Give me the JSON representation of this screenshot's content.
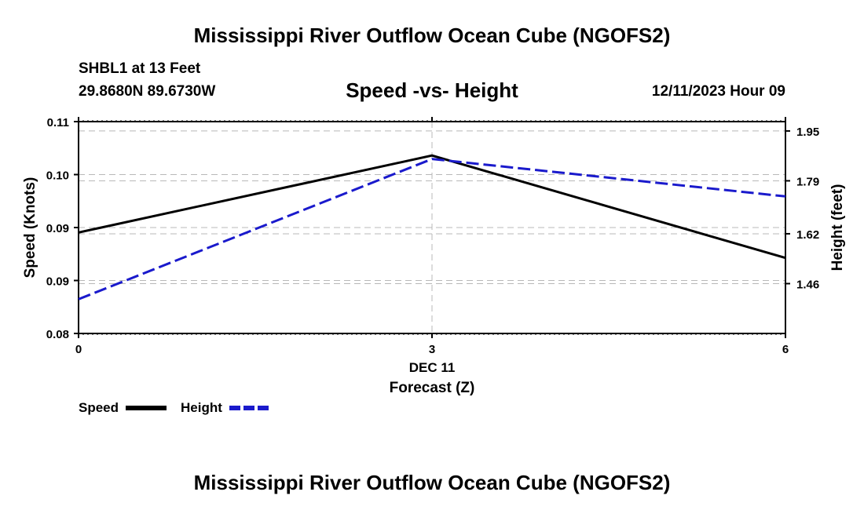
{
  "header": {
    "title": "Mississippi River Outflow Ocean Cube (NGOFS2)",
    "station": "SHBL1 at 13 Feet",
    "coords": "29.8680N  89.6730W",
    "subtitle": "Speed -vs- Height",
    "datetime": "12/11/2023 Hour 09"
  },
  "footer": {
    "title": "Mississippi River Outflow Ocean Cube (NGOFS2)"
  },
  "chart_data": {
    "type": "line",
    "title": "Speed -vs- Height",
    "xlabel": "Forecast (Z)",
    "x_date_label": "DEC 11",
    "x": [
      0,
      3,
      6
    ],
    "x_ticks": [
      "0",
      "3",
      "6"
    ],
    "xlim": [
      0,
      6
    ],
    "left_axis": {
      "label": "Speed (Knots)",
      "ylim": [
        0.08,
        0.11
      ],
      "ticks": [
        0.08,
        0.09,
        0.09,
        0.1,
        0.11
      ],
      "tick_values": [
        0.08,
        0.0875,
        0.095,
        0.1025,
        0.11
      ],
      "tick_labels": [
        "0.08",
        "0.09",
        "0.09",
        "0.10",
        "0.11"
      ]
    },
    "right_axis": {
      "label": "Height (feet)",
      "ylim": [
        1.3,
        1.98
      ],
      "tick_values": [
        1.46,
        1.62,
        1.79,
        1.95
      ],
      "tick_labels": [
        "1.46",
        "1.62",
        "1.79",
        "1.95"
      ]
    },
    "grid": true,
    "series": [
      {
        "name": "Speed",
        "axis": "left",
        "values": [
          0.0943,
          0.1052,
          0.0907
        ],
        "color": "#000000",
        "style": "solid"
      },
      {
        "name": "Height",
        "axis": "right",
        "values": [
          1.41,
          1.86,
          1.74
        ],
        "color": "#1a1acc",
        "style": "dashed"
      }
    ],
    "legend": {
      "position": "bottom-left",
      "labels": [
        "Speed",
        "Height"
      ]
    }
  }
}
